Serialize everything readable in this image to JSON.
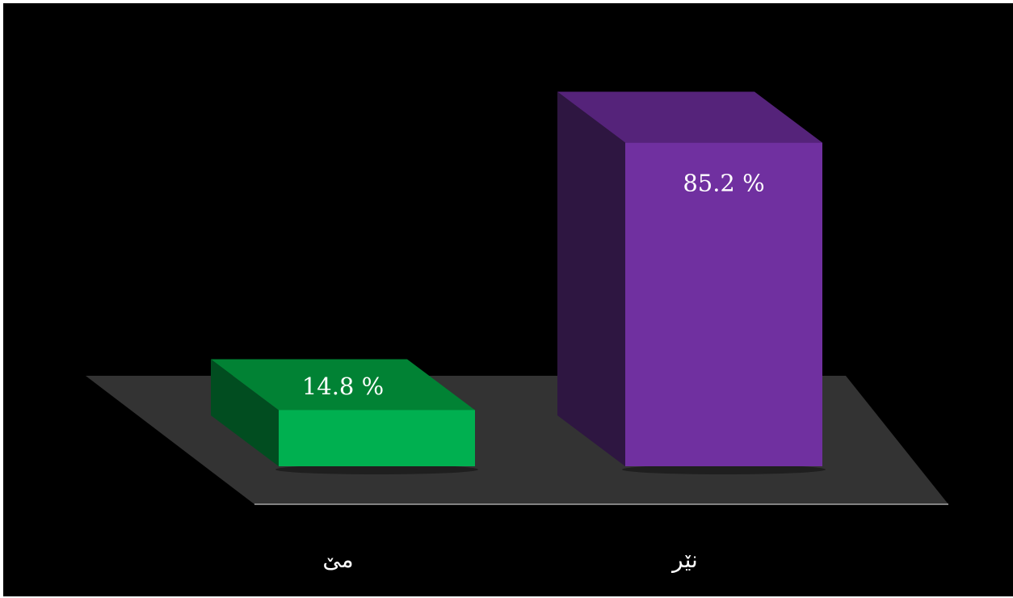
{
  "chart_data": {
    "type": "bar",
    "style": "3d-column",
    "categories": [
      "مێ",
      "نێر"
    ],
    "values": [
      14.8,
      85.2
    ],
    "data_labels": [
      "14.8 %",
      "85.2 %"
    ],
    "value_unit": "%",
    "ylim": [
      0,
      100
    ],
    "grid": false,
    "legend": "none",
    "title": "",
    "xlabel": "",
    "ylabel": ""
  },
  "colors": {
    "background": "#000000",
    "floor": "#333333",
    "floor_edge": "#a6a6a6",
    "bars": [
      {
        "front": "#00b050",
        "top": "#018234",
        "side": "#014d20"
      },
      {
        "front": "#7030a0",
        "top": "#55237a",
        "side": "#2e1641"
      }
    ]
  }
}
